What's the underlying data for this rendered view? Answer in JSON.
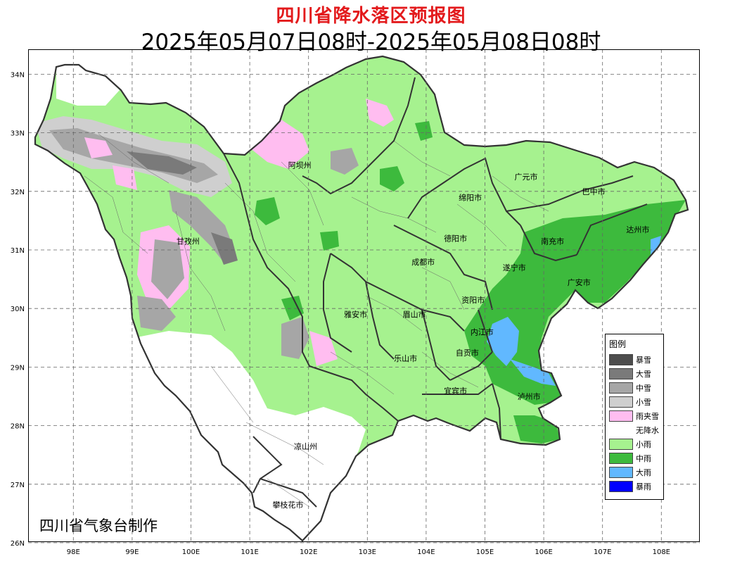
{
  "header": {
    "title": "四川省降水落区预报图",
    "subtitle": "2025年05月07日08时-2025年05月08日08时"
  },
  "credit": "四川省气象台制作",
  "axes": {
    "lon_labels": [
      "98E",
      "99E",
      "100E",
      "101E",
      "102E",
      "103E",
      "104E",
      "105E",
      "106E",
      "107E",
      "108E"
    ],
    "lat_labels": [
      "34N",
      "33N",
      "32N",
      "31N",
      "30N",
      "29N",
      "28N",
      "27N",
      "26N"
    ]
  },
  "cities": [
    {
      "name": "阿坝州",
      "lon": 101.85,
      "lat": 32.4
    },
    {
      "name": "广元市",
      "lon": 105.7,
      "lat": 32.2
    },
    {
      "name": "巴中市",
      "lon": 106.85,
      "lat": 31.95
    },
    {
      "name": "绵阳市",
      "lon": 104.75,
      "lat": 31.85
    },
    {
      "name": "甘孜州",
      "lon": 99.95,
      "lat": 31.1
    },
    {
      "name": "德阳市",
      "lon": 104.5,
      "lat": 31.15
    },
    {
      "name": "南充市",
      "lon": 106.15,
      "lat": 31.1
    },
    {
      "name": "达州市",
      "lon": 107.6,
      "lat": 31.3
    },
    {
      "name": "成都市",
      "lon": 103.95,
      "lat": 30.75
    },
    {
      "name": "遂宁市",
      "lon": 105.5,
      "lat": 30.65
    },
    {
      "name": "广安市",
      "lon": 106.6,
      "lat": 30.4
    },
    {
      "name": "资阳市",
      "lon": 104.8,
      "lat": 30.1
    },
    {
      "name": "雅安市",
      "lon": 102.8,
      "lat": 29.85
    },
    {
      "name": "眉山市",
      "lon": 103.8,
      "lat": 29.85
    },
    {
      "name": "内江市",
      "lon": 104.95,
      "lat": 29.55
    },
    {
      "name": "自贡市",
      "lon": 104.7,
      "lat": 29.2
    },
    {
      "name": "乐山市",
      "lon": 103.65,
      "lat": 29.1
    },
    {
      "name": "宜宾市",
      "lon": 104.5,
      "lat": 28.55
    },
    {
      "name": "泸州市",
      "lon": 105.75,
      "lat": 28.45
    },
    {
      "name": "凉山州",
      "lon": 101.95,
      "lat": 27.6
    },
    {
      "name": "攀枝花市",
      "lon": 101.65,
      "lat": 26.6
    }
  ],
  "legend": {
    "title": "图例",
    "items": [
      {
        "label": "暴雪",
        "color": "#4d4d4d"
      },
      {
        "label": "大雪",
        "color": "#7a7a7a"
      },
      {
        "label": "中雪",
        "color": "#a6a6a6"
      },
      {
        "label": "小雪",
        "color": "#cfcfcf"
      },
      {
        "label": "雨夹雪",
        "color": "#ffbdf0"
      },
      {
        "label": "无降水",
        "color": "#ffffff"
      },
      {
        "label": "小雨",
        "color": "#a6f28f"
      },
      {
        "label": "中雨",
        "color": "#3dba3d"
      },
      {
        "label": "大雨",
        "color": "#61b8ff"
      },
      {
        "label": "暴雨",
        "color": "#0000fe"
      }
    ]
  }
}
